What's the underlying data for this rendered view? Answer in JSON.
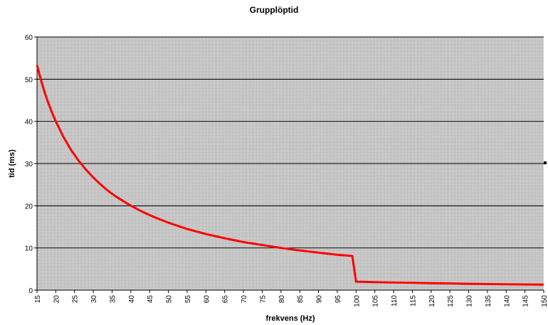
{
  "chart_data": {
    "type": "line",
    "title": "Grupplöptid",
    "xlabel": "frekvens (Hz)",
    "ylabel": "tid (ms)",
    "xlim": [
      15,
      150
    ],
    "ylim": [
      0,
      60
    ],
    "x_ticks": [
      15,
      20,
      25,
      30,
      35,
      40,
      45,
      50,
      55,
      60,
      65,
      70,
      75,
      80,
      85,
      90,
      95,
      100,
      105,
      110,
      115,
      120,
      125,
      130,
      135,
      140,
      145,
      150
    ],
    "y_ticks": [
      0,
      10,
      20,
      30,
      40,
      50,
      60
    ],
    "grid": true,
    "legend": "none",
    "colors": {
      "line": "#ff0000",
      "plot_bg": "#c8c8c8",
      "grid": "#000000"
    },
    "series": [
      {
        "points": [
          [
            15,
            53.3
          ],
          [
            16,
            50
          ],
          [
            17,
            47
          ],
          [
            18,
            44.4
          ],
          [
            19,
            42.1
          ],
          [
            20,
            40
          ],
          [
            22,
            36.4
          ],
          [
            24,
            33.3
          ],
          [
            26,
            30.8
          ],
          [
            28,
            28.6
          ],
          [
            30,
            26.7
          ],
          [
            32,
            25
          ],
          [
            34,
            23.5
          ],
          [
            36,
            22.2
          ],
          [
            38,
            21.1
          ],
          [
            40,
            20
          ],
          [
            43,
            18.6
          ],
          [
            46,
            17.4
          ],
          [
            50,
            16
          ],
          [
            55,
            14.5
          ],
          [
            60,
            13.3
          ],
          [
            65,
            12.3
          ],
          [
            70,
            11.4
          ],
          [
            75,
            10.7
          ],
          [
            80,
            10
          ],
          [
            85,
            9.4
          ],
          [
            90,
            8.9
          ],
          [
            95,
            8.4
          ],
          [
            99,
            8.1
          ],
          [
            100,
            2
          ],
          [
            105,
            1.9
          ],
          [
            110,
            1.8
          ],
          [
            115,
            1.75
          ],
          [
            120,
            1.65
          ],
          [
            125,
            1.6
          ],
          [
            130,
            1.5
          ],
          [
            135,
            1.45
          ],
          [
            140,
            1.4
          ],
          [
            145,
            1.35
          ],
          [
            150,
            1.3
          ]
        ]
      }
    ]
  }
}
